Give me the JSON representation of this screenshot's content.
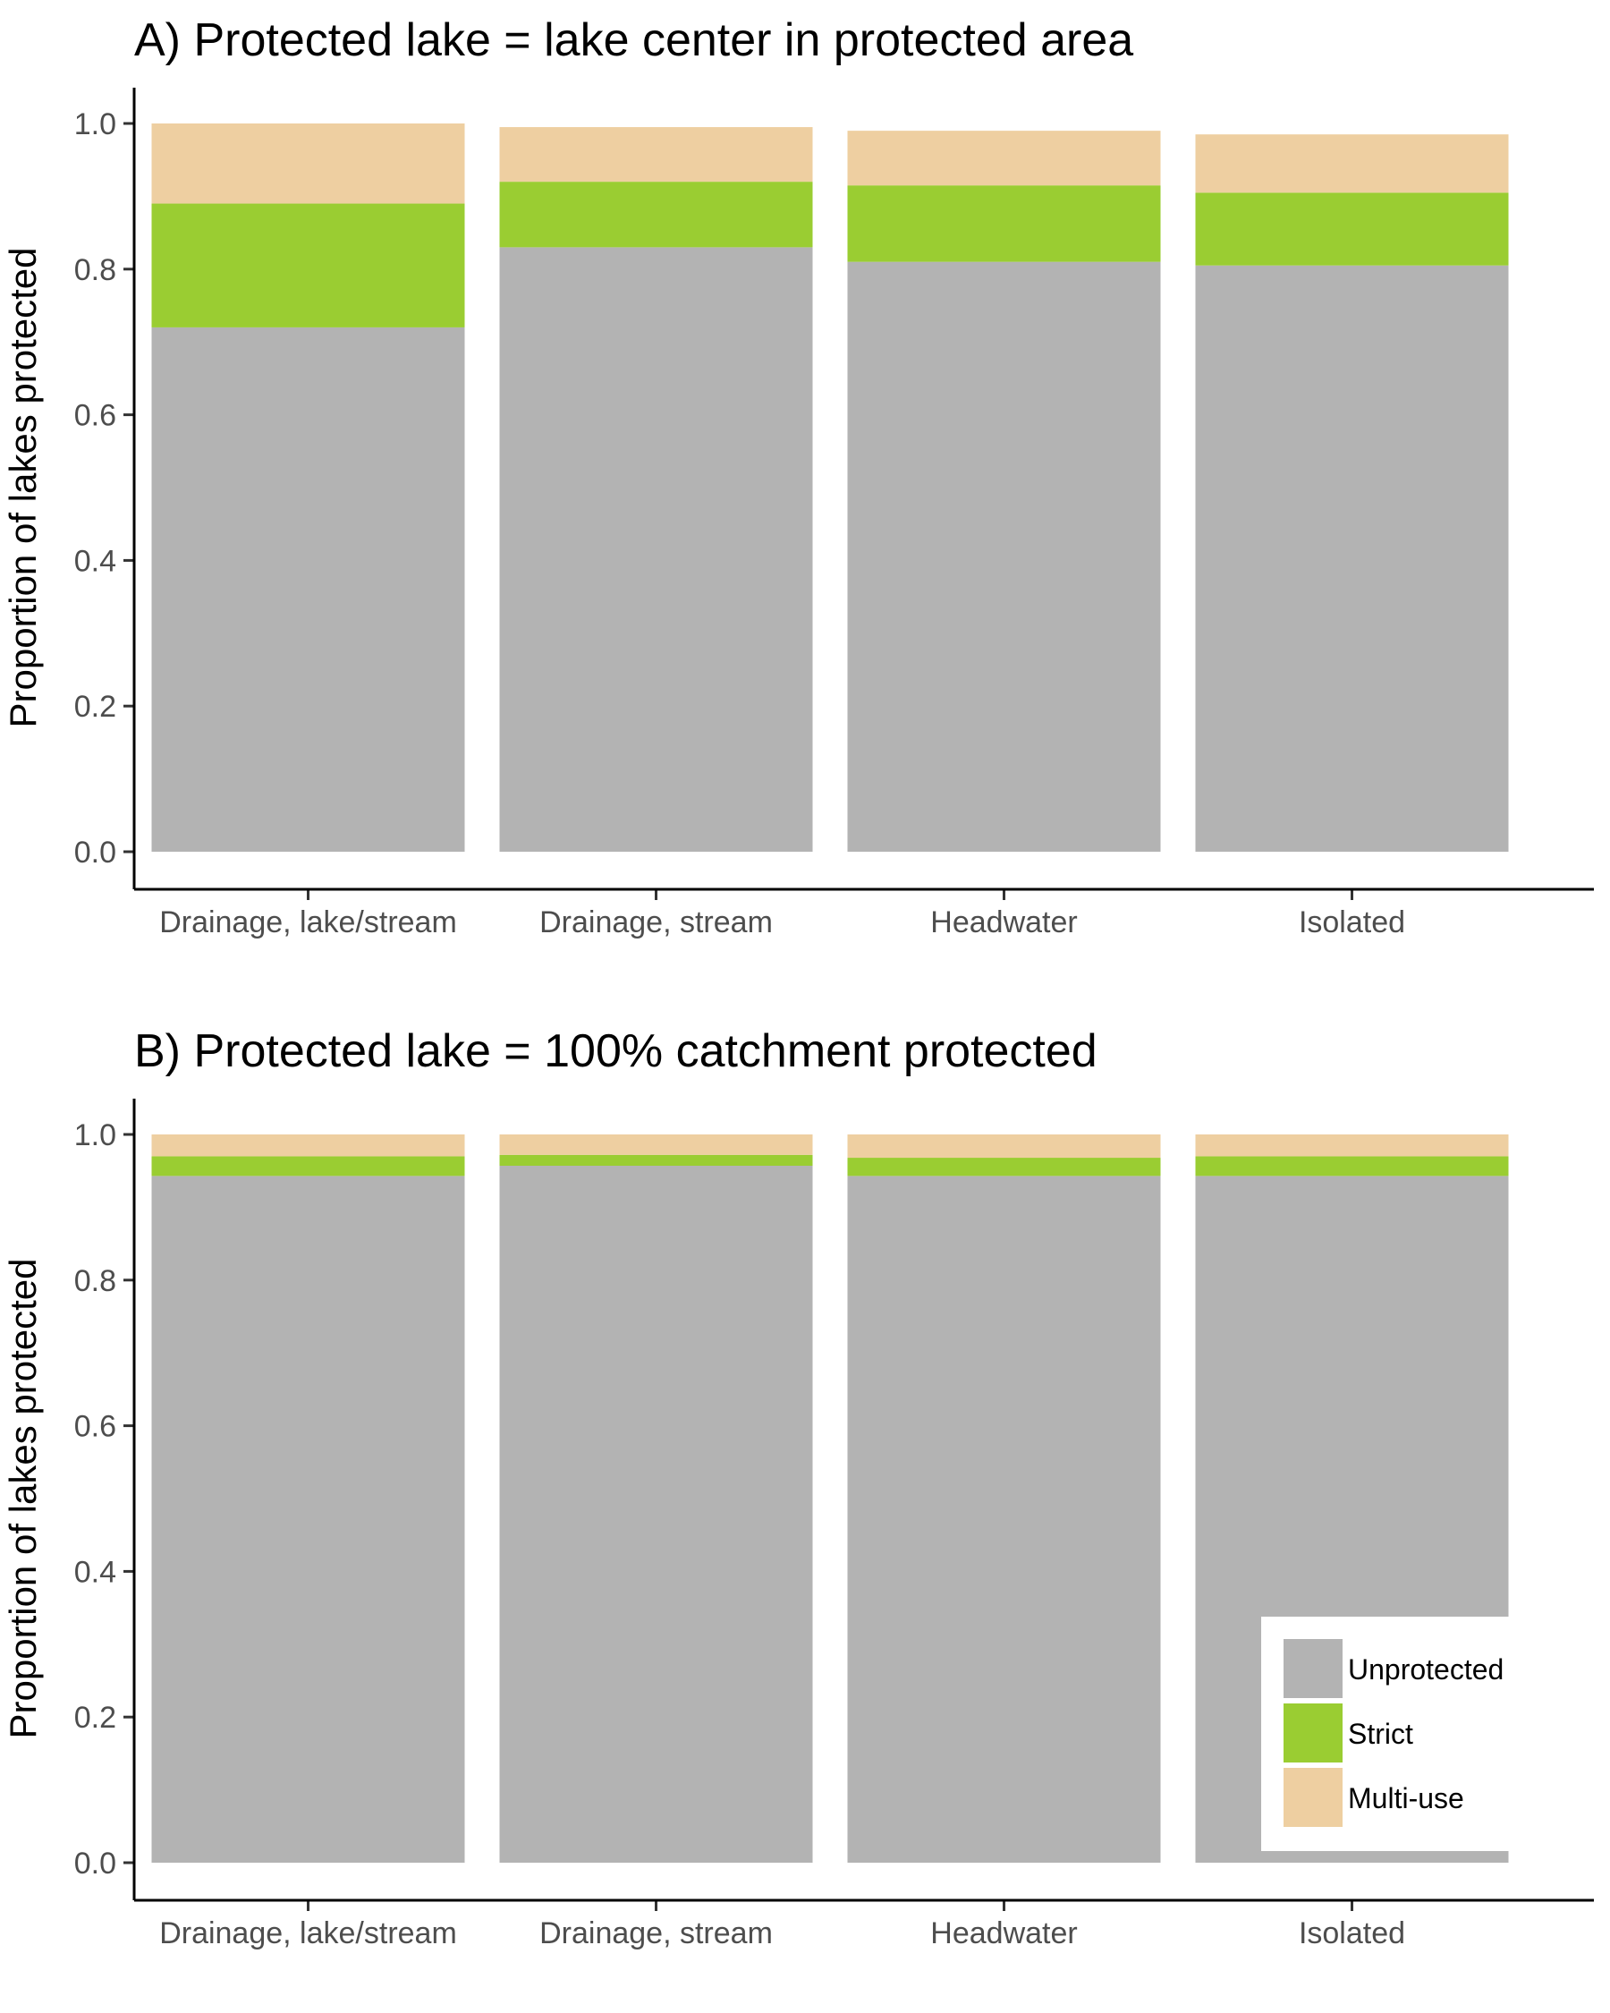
{
  "chart_data": [
    {
      "type": "bar",
      "stacked": true,
      "title": "A) Protected lake = lake center in protected area",
      "xlabel": "",
      "ylabel": "Proportion of lakes protected",
      "ylim": [
        0,
        1.0
      ],
      "yticks": [
        "0.0",
        "0.2",
        "0.4",
        "0.6",
        "0.8",
        "1.0"
      ],
      "categories": [
        "Drainage, lake/stream",
        "Drainage, stream",
        "Headwater",
        "Isolated"
      ],
      "series": [
        {
          "name": "Unprotected",
          "color": "#b3b3b3",
          "values": [
            0.72,
            0.83,
            0.81,
            0.805
          ]
        },
        {
          "name": "Strict",
          "color": "#9acd32",
          "values": [
            0.17,
            0.09,
            0.105,
            0.1
          ]
        },
        {
          "name": "Multi-use",
          "color": "#eecfa1",
          "values": [
            0.11,
            0.075,
            0.075,
            0.08
          ]
        }
      ],
      "grid": false,
      "legend": null
    },
    {
      "type": "bar",
      "stacked": true,
      "title": "B) Protected lake = 100% catchment protected",
      "xlabel": "",
      "ylabel": "Proportion of lakes protected",
      "ylim": [
        0,
        1.0
      ],
      "yticks": [
        "0.0",
        "0.2",
        "0.4",
        "0.6",
        "0.8",
        "1.0"
      ],
      "categories": [
        "Drainage, lake/stream",
        "Drainage, stream",
        "Headwater",
        "Isolated"
      ],
      "series": [
        {
          "name": "Unprotected",
          "color": "#b3b3b3",
          "values": [
            0.943,
            0.957,
            0.943,
            0.943
          ]
        },
        {
          "name": "Strict",
          "color": "#9acd32",
          "values": [
            0.027,
            0.015,
            0.025,
            0.027
          ]
        },
        {
          "name": "Multi-use",
          "color": "#eecfa1",
          "values": [
            0.03,
            0.028,
            0.032,
            0.03
          ]
        }
      ],
      "grid": false,
      "legend": {
        "placement": "bottom-right",
        "entries": [
          "Unprotected",
          "Strict",
          "Multi-use"
        ]
      }
    }
  ]
}
